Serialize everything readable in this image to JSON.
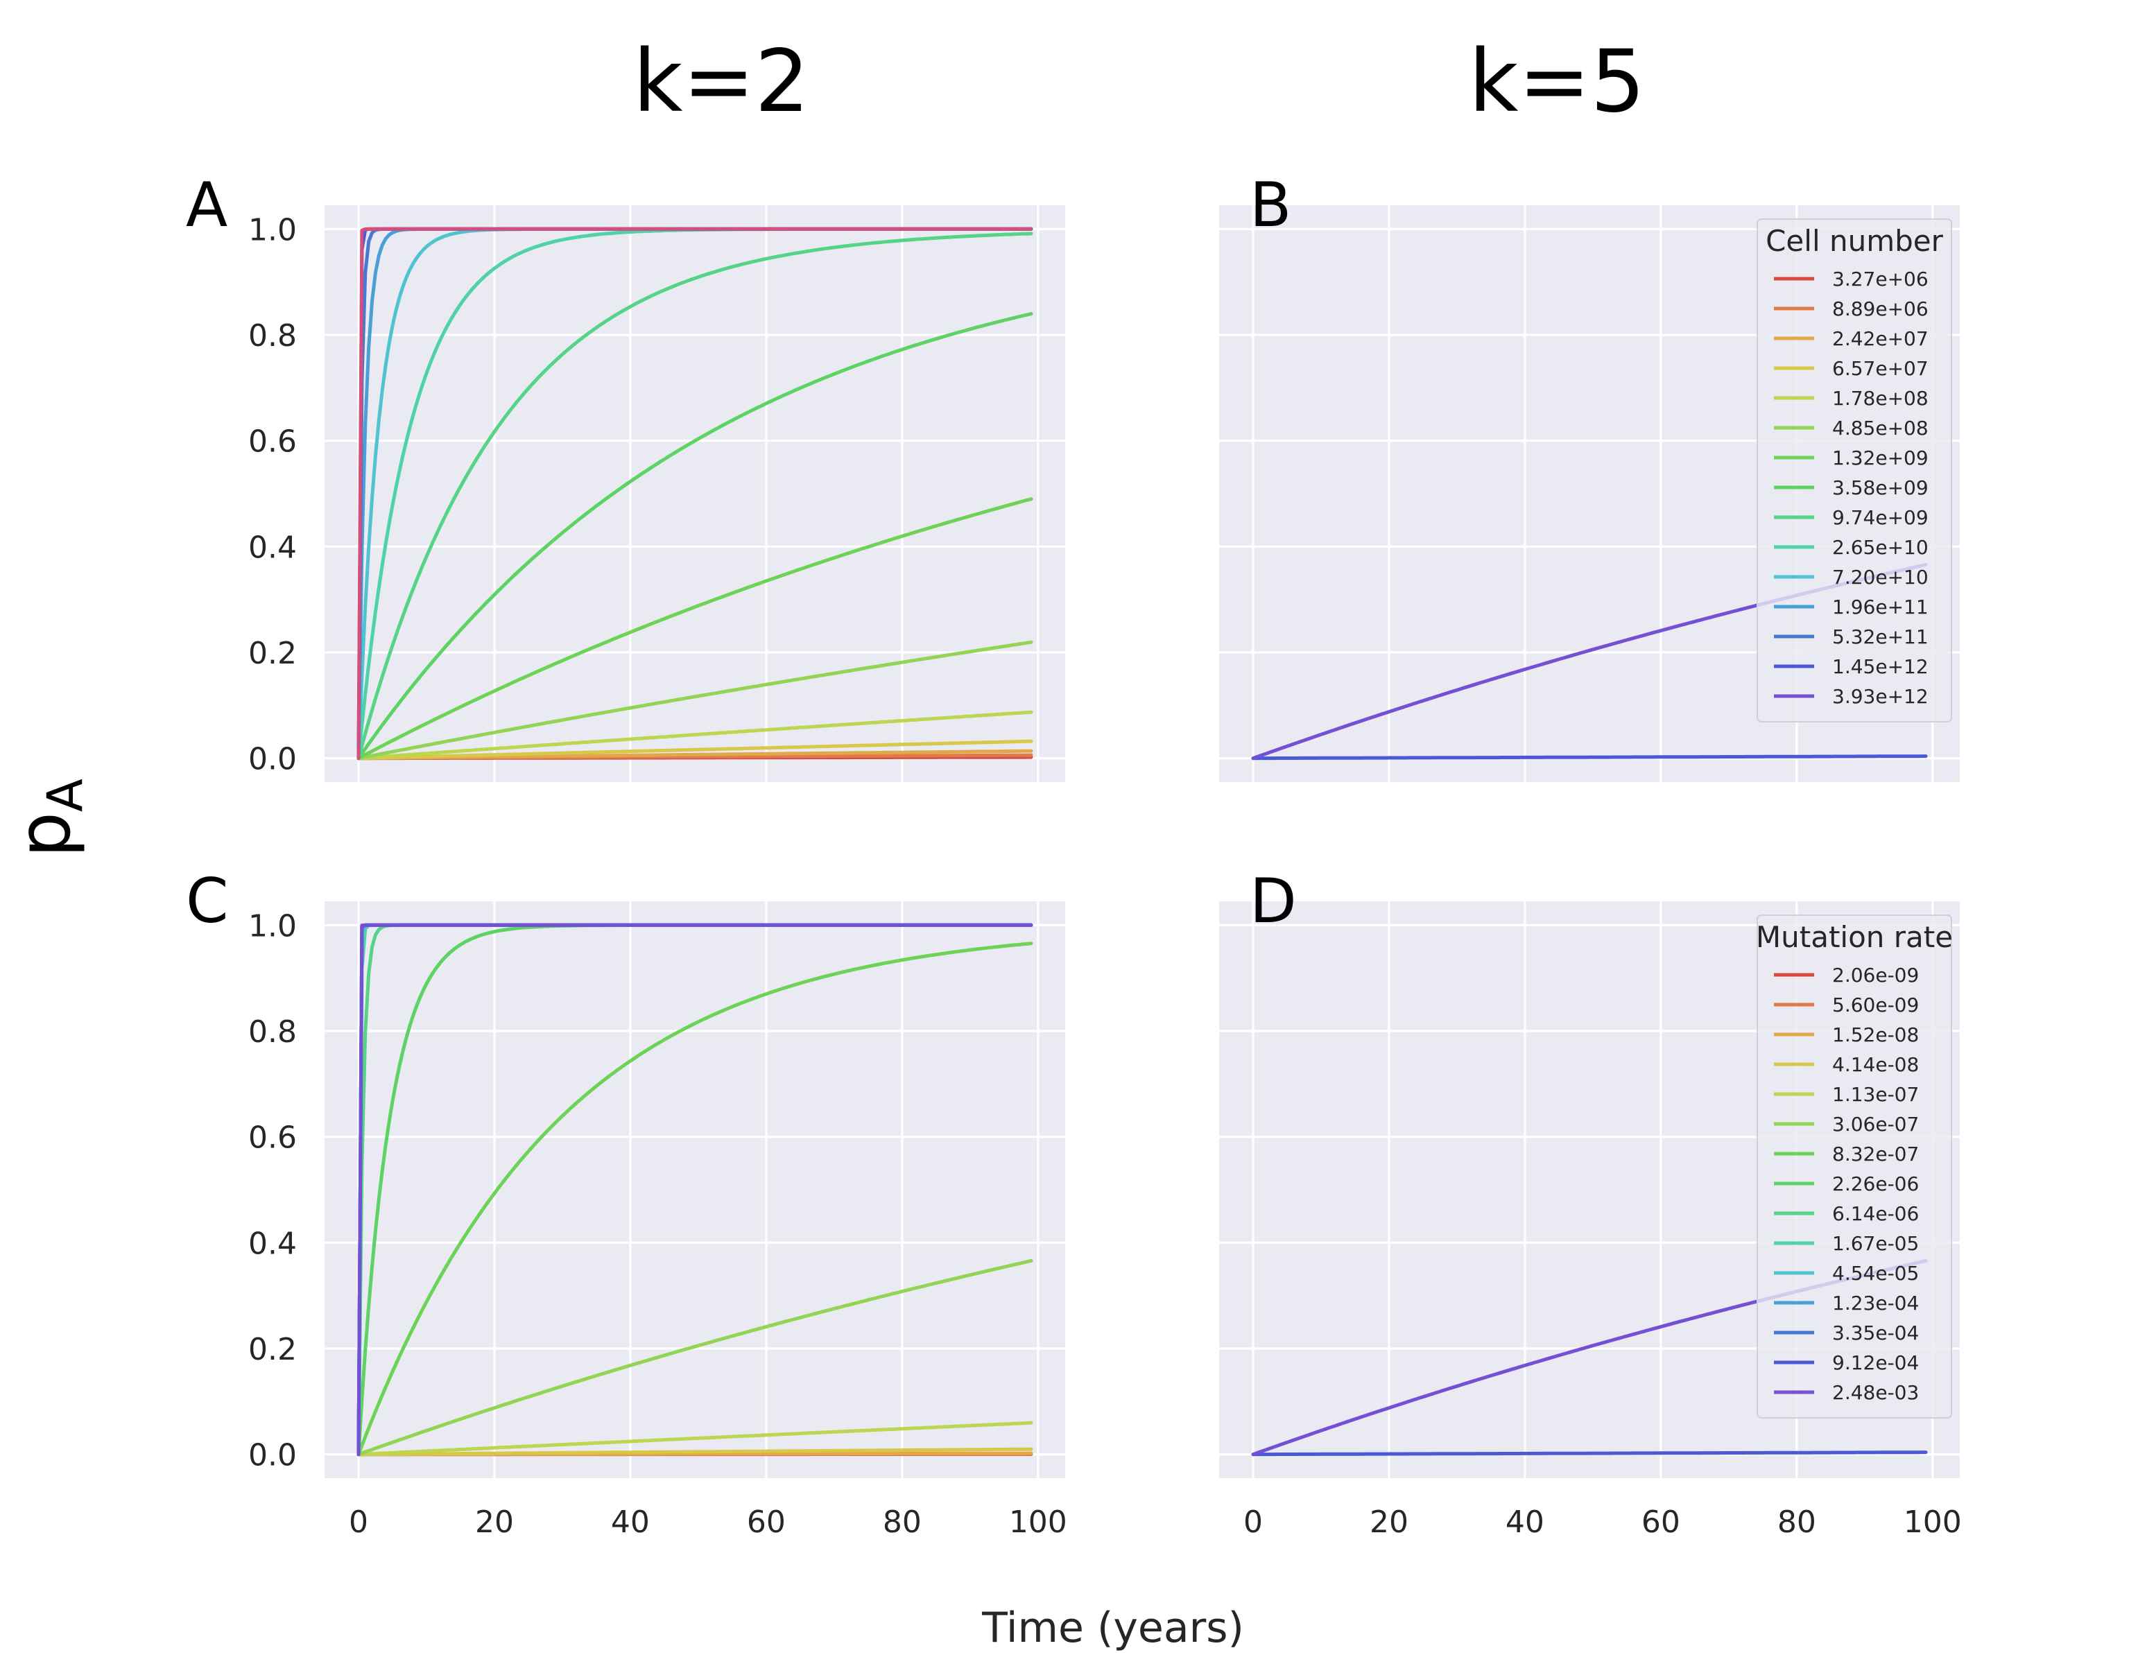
{
  "figure": {
    "column_titles": [
      "k=2",
      "k=5"
    ],
    "xlabel": "Time (years)",
    "ylabel_main": "p",
    "ylabel_sub": "A"
  },
  "colors": {
    "background": "#ffffff",
    "axes_face": "#eaeaf2",
    "grid": "#ffffff",
    "text": "#262626"
  },
  "chart_data": [
    {
      "type": "line",
      "panel_label": "A",
      "x_range": [
        0,
        99
      ],
      "xlim": [
        -5,
        104
      ],
      "ylim": [
        -0.045,
        1.045
      ],
      "xticks": [
        0,
        20,
        40,
        60,
        80,
        100
      ],
      "yticks": [
        0.0,
        0.2,
        0.4,
        0.6,
        0.8,
        1.0
      ],
      "xtick_labels": [
        "0",
        "20",
        "40",
        "60",
        "80",
        "100"
      ],
      "ytick_labels": [
        "0.0",
        "0.2",
        "0.4",
        "0.6",
        "0.8",
        "1.0"
      ],
      "show_xticks": false,
      "show_yticks": true,
      "grid": true,
      "legend": null,
      "series": [
        {
          "color": "#db4a3e",
          "rate": 2e-05
        },
        {
          "color": "#e07a49",
          "rate": 6e-05
        },
        {
          "color": "#e0a84a",
          "rate": 0.00014
        },
        {
          "color": "#d8c84a",
          "rate": 0.00033
        },
        {
          "color": "#bcd650",
          "rate": 0.00092
        },
        {
          "color": "#93d454",
          "rate": 0.0025
        },
        {
          "color": "#6dd357",
          "rate": 0.0068
        },
        {
          "color": "#5cd364",
          "rate": 0.0185
        },
        {
          "color": "#55d488",
          "rate": 0.048
        },
        {
          "color": "#4ed2a6",
          "rate": 0.13
        },
        {
          "color": "#4fc4d0",
          "rate": 0.34
        },
        {
          "color": "#4aa0d6",
          "rate": 1.0
        },
        {
          "color": "#4778d2",
          "rate": 2.5
        },
        {
          "color": "#4c58d6",
          "rate": 6.5
        },
        {
          "color": "#d64e7c",
          "rate": 12.0
        }
      ]
    },
    {
      "type": "line",
      "panel_label": "B",
      "x_range": [
        0,
        99
      ],
      "xlim": [
        -5,
        104
      ],
      "ylim": [
        -0.045,
        1.045
      ],
      "xticks": [
        0,
        20,
        40,
        60,
        80,
        100
      ],
      "yticks": [
        0.0,
        0.2,
        0.4,
        0.6,
        0.8,
        1.0
      ],
      "xtick_labels": [
        "0",
        "20",
        "40",
        "60",
        "80",
        "100"
      ],
      "ytick_labels": [
        "0.0",
        "0.2",
        "0.4",
        "0.6",
        "0.8",
        "1.0"
      ],
      "show_xticks": false,
      "show_yticks": false,
      "grid": true,
      "legend": {
        "title": "Cell number",
        "placement": "top-right",
        "entries": [
          {
            "label": "3.27e+06",
            "color": "#db4a3e"
          },
          {
            "label": "8.89e+06",
            "color": "#e07a49"
          },
          {
            "label": "2.42e+07",
            "color": "#e0a84a"
          },
          {
            "label": "6.57e+07",
            "color": "#d8c84a"
          },
          {
            "label": "1.78e+08",
            "color": "#bcd650"
          },
          {
            "label": "4.85e+08",
            "color": "#93d454"
          },
          {
            "label": "1.32e+09",
            "color": "#6dd357"
          },
          {
            "label": "3.58e+09",
            "color": "#5cd364"
          },
          {
            "label": "9.74e+09",
            "color": "#55d488"
          },
          {
            "label": "2.65e+10",
            "color": "#4ed2a6"
          },
          {
            "label": "7.20e+10",
            "color": "#4fc4d0"
          },
          {
            "label": "1.96e+11",
            "color": "#4aa0d6"
          },
          {
            "label": "5.32e+11",
            "color": "#4778d2"
          },
          {
            "label": "1.45e+12",
            "color": "#4c58d6"
          },
          {
            "label": "3.93e+12",
            "color": "#7450d4"
          }
        ]
      },
      "series": [
        {
          "color": "#4c58d6",
          "rate": 4e-05
        },
        {
          "color": "#7450d4",
          "rate": 0.0046
        }
      ]
    },
    {
      "type": "line",
      "panel_label": "C",
      "x_range": [
        0,
        99
      ],
      "xlim": [
        -5,
        104
      ],
      "ylim": [
        -0.045,
        1.045
      ],
      "xticks": [
        0,
        20,
        40,
        60,
        80,
        100
      ],
      "yticks": [
        0.0,
        0.2,
        0.4,
        0.6,
        0.8,
        1.0
      ],
      "xtick_labels": [
        "0",
        "20",
        "40",
        "60",
        "80",
        "100"
      ],
      "ytick_labels": [
        "0.0",
        "0.2",
        "0.4",
        "0.6",
        "0.8",
        "1.0"
      ],
      "show_xticks": true,
      "show_yticks": true,
      "grid": true,
      "legend": null,
      "series": [
        {
          "color": "#db4a3e",
          "rate": 2e-06
        },
        {
          "color": "#e07a49",
          "rate": 6e-06
        },
        {
          "color": "#e0a84a",
          "rate": 2e-05
        },
        {
          "color": "#d8c84a",
          "rate": 0.0001
        },
        {
          "color": "#bcd650",
          "rate": 0.00062
        },
        {
          "color": "#93d454",
          "rate": 0.0046
        },
        {
          "color": "#6dd357",
          "rate": 0.034
        },
        {
          "color": "#5cd364",
          "rate": 0.22
        },
        {
          "color": "#55d488",
          "rate": 1.6
        },
        {
          "color": "#4ed2a6",
          "rate": 5.0
        },
        {
          "color": "#4fc4d0",
          "rate": 8.0
        },
        {
          "color": "#4aa0d6",
          "rate": 10.0
        },
        {
          "color": "#4778d2",
          "rate": 12.0
        },
        {
          "color": "#4c58d6",
          "rate": 14.0
        },
        {
          "color": "#7450d4",
          "rate": 16.0
        }
      ]
    },
    {
      "type": "line",
      "panel_label": "D",
      "x_range": [
        0,
        99
      ],
      "xlim": [
        -5,
        104
      ],
      "ylim": [
        -0.045,
        1.045
      ],
      "xticks": [
        0,
        20,
        40,
        60,
        80,
        100
      ],
      "yticks": [
        0.0,
        0.2,
        0.4,
        0.6,
        0.8,
        1.0
      ],
      "xtick_labels": [
        "0",
        "20",
        "40",
        "60",
        "80",
        "100"
      ],
      "ytick_labels": [
        "0.0",
        "0.2",
        "0.4",
        "0.6",
        "0.8",
        "1.0"
      ],
      "show_xticks": true,
      "show_yticks": false,
      "grid": true,
      "legend": {
        "title": "Mutation rate",
        "placement": "top-right",
        "entries": [
          {
            "label": "2.06e-09",
            "color": "#db4a3e"
          },
          {
            "label": "5.60e-09",
            "color": "#e07a49"
          },
          {
            "label": "1.52e-08",
            "color": "#e0a84a"
          },
          {
            "label": "4.14e-08",
            "color": "#d8c84a"
          },
          {
            "label": "1.13e-07",
            "color": "#bcd650"
          },
          {
            "label": "3.06e-07",
            "color": "#93d454"
          },
          {
            "label": "8.32e-07",
            "color": "#6dd357"
          },
          {
            "label": "2.26e-06",
            "color": "#5cd364"
          },
          {
            "label": "6.14e-06",
            "color": "#55d488"
          },
          {
            "label": "1.67e-05",
            "color": "#4ed2a6"
          },
          {
            "label": "4.54e-05",
            "color": "#4fc4d0"
          },
          {
            "label": "1.23e-04",
            "color": "#4aa0d6"
          },
          {
            "label": "3.35e-04",
            "color": "#4778d2"
          },
          {
            "label": "9.12e-04",
            "color": "#4c58d6"
          },
          {
            "label": "2.48e-03",
            "color": "#7450d4"
          }
        ]
      },
      "series": [
        {
          "color": "#4c58d6",
          "rate": 4e-05
        },
        {
          "color": "#7450d4",
          "rate": 0.0046
        }
      ]
    }
  ]
}
